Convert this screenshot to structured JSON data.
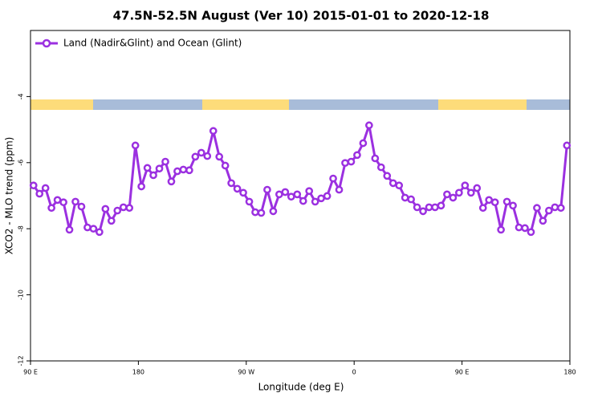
{
  "chart_data": {
    "type": "line",
    "title": "47.5N-52.5N August (Ver 10)   2015-01-01 to 2020-12-18",
    "xlabel": "Longitude (deg E)",
    "ylabel": "XCO2 - MLO trend (ppm)",
    "xlim": [
      90,
      540
    ],
    "ylim": [
      -12,
      -2
    ],
    "xticks": [
      {
        "value": 90,
        "label": "90 E"
      },
      180,
      {
        "value": 270,
        "label": "90 W"
      },
      {
        "value": 360,
        "label": "0"
      },
      {
        "value": 450,
        "label": "90 E"
      },
      {
        "value": 540,
        "label": "180"
      }
    ],
    "yticks": [
      -4,
      -6,
      -8,
      -10,
      -12
    ],
    "legend": "upper left",
    "x": [
      92.5,
      97.5,
      102.5,
      107.5,
      112.5,
      117.5,
      122.5,
      127.5,
      132.5,
      137.5,
      142.5,
      147.5,
      152.5,
      157.5,
      162.5,
      167.5,
      172.5,
      177.5,
      182.5,
      187.5,
      192.5,
      197.5,
      202.5,
      207.5,
      212.5,
      217.5,
      222.5,
      227.5,
      232.5,
      237.5,
      242.5,
      247.5,
      252.5,
      257.5,
      262.5,
      267.5,
      272.5,
      277.5,
      282.5,
      287.5,
      292.5,
      297.5,
      302.5,
      307.5,
      312.5,
      317.5,
      322.5,
      327.5,
      332.5,
      337.5,
      342.5,
      347.5,
      352.5,
      357.5,
      362.5,
      367.5,
      372.5,
      377.5,
      382.5,
      387.5,
      392.5,
      397.5,
      402.5,
      407.5,
      412.5,
      417.5,
      422.5,
      427.5,
      432.5,
      437.5,
      442.5,
      447.5,
      452.5,
      457.5,
      462.5,
      467.5,
      472.5,
      477.5,
      482.5,
      487.5,
      492.5,
      497.5,
      502.5,
      507.5,
      512.5,
      517.5,
      522.5,
      527.5,
      532.5,
      537.5
    ],
    "series": [
      {
        "name": "Land (Nadir&Glint) and Ocean (Glint)",
        "color": "#9b30e0",
        "values": [
          -6.69,
          -6.94,
          -6.77,
          -7.37,
          -7.13,
          -7.2,
          -8.03,
          -7.18,
          -7.33,
          -7.96,
          -8.0,
          -8.1,
          -7.4,
          -7.76,
          -7.45,
          -7.35,
          -7.37,
          -5.48,
          -6.72,
          -6.16,
          -6.38,
          -6.18,
          -5.97,
          -6.57,
          -6.26,
          -6.21,
          -6.23,
          -5.82,
          -5.7,
          -5.8,
          -5.04,
          -5.82,
          -6.09,
          -6.62,
          -6.79,
          -6.91,
          -7.18,
          -7.5,
          -7.52,
          -6.82,
          -7.47,
          -6.96,
          -6.89,
          -7.03,
          -6.96,
          -7.16,
          -6.86,
          -7.18,
          -7.08,
          -7.01,
          -6.48,
          -6.82,
          -6.01,
          -5.97,
          -5.77,
          -5.41,
          -4.87,
          -5.87,
          -6.14,
          -6.4,
          -6.62,
          -6.69,
          -7.06,
          -7.11,
          -7.35,
          -7.47,
          -7.35,
          -7.35,
          -7.3,
          -6.96,
          -7.06,
          -6.91,
          -6.69,
          -6.91,
          -6.77,
          -7.37,
          -7.13,
          -7.2,
          -8.03,
          -7.18,
          -7.3,
          -7.96,
          -7.98,
          -8.1,
          -7.37,
          -7.76,
          -7.45,
          -7.35,
          -7.37,
          -5.48
        ]
      }
    ]
  }
}
